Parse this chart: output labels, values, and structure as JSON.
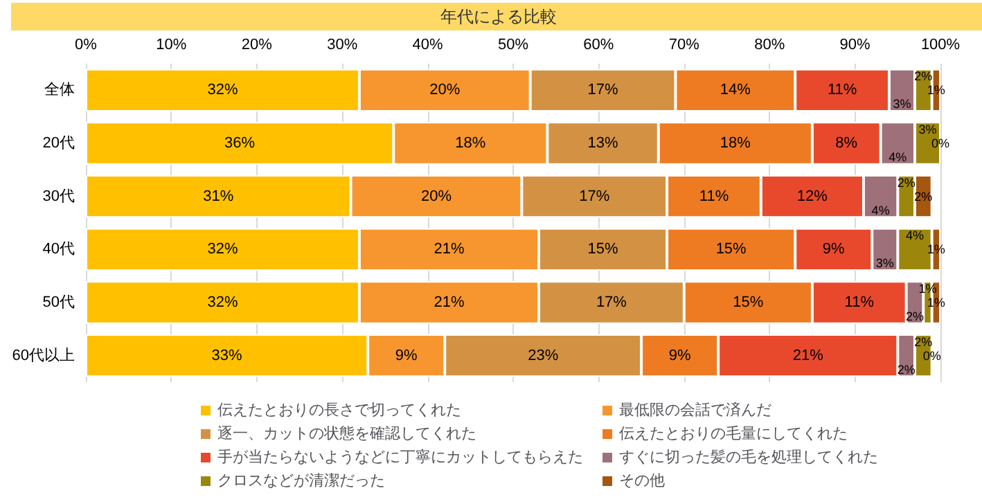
{
  "chart_data": {
    "type": "bar",
    "orientation": "horizontal",
    "stacked": true,
    "title": "年代による比較",
    "categories": [
      "全体",
      "20代",
      "30代",
      "40代",
      "50代",
      "60代以上"
    ],
    "series": [
      {
        "name": "伝えたとおりの長さで切ってくれた",
        "color": "#ffc000",
        "values": [
          32,
          36,
          31,
          32,
          32,
          33
        ],
        "value_labels": [
          "32%",
          "36%",
          "31%",
          "32%",
          "32%",
          "33%"
        ]
      },
      {
        "name": "最低限の会話で済んだ",
        "color": "#f7962e",
        "values": [
          20,
          18,
          20,
          21,
          21,
          9
        ],
        "value_labels": [
          "20%",
          "18%",
          "20%",
          "21%",
          "21%",
          "9%"
        ]
      },
      {
        "name": "逐一、カットの状態を確認してくれた",
        "color": "#d39243",
        "values": [
          17,
          13,
          17,
          15,
          17,
          23
        ],
        "value_labels": [
          "17%",
          "13%",
          "17%",
          "15%",
          "17%",
          "23%"
        ]
      },
      {
        "name": "伝えたとおりの毛量にしてくれた",
        "color": "#ee7b22",
        "values": [
          14,
          18,
          11,
          15,
          15,
          9
        ],
        "value_labels": [
          "14%",
          "18%",
          "11%",
          "15%",
          "15%",
          "9%"
        ]
      },
      {
        "name": "手が当たらないようなどに丁寧にカットしてもらえた",
        "color": "#e8492c",
        "values": [
          11,
          8,
          12,
          9,
          11,
          21
        ],
        "value_labels": [
          "11%",
          "8%",
          "12%",
          "9%",
          "11%",
          "21%"
        ]
      },
      {
        "name": "すぐに切った髪の毛を処理してくれた",
        "color": "#9e7079",
        "values": [
          3,
          4,
          4,
          3,
          2,
          2
        ],
        "value_labels": [
          "3%",
          "4%",
          "4%",
          "3%",
          "2%",
          "2%"
        ]
      },
      {
        "name": "クロスなどが清潔だった",
        "color": "#9c870c",
        "values": [
          2,
          3,
          2,
          4,
          1,
          2
        ],
        "value_labels": [
          "2%",
          "3%",
          "2%",
          "4%",
          "1%",
          "2%"
        ]
      },
      {
        "name": "その他",
        "color": "#a5560f",
        "values": [
          1,
          0,
          2,
          1,
          1,
          0
        ],
        "value_labels": [
          "1%",
          "0%",
          "2%",
          "1%",
          "1%",
          "0%"
        ]
      }
    ],
    "xlim": [
      0,
      100
    ],
    "xticks": [
      {
        "value": 0,
        "label": "0%"
      },
      {
        "value": 10,
        "label": "10%"
      },
      {
        "value": 20,
        "label": "20%"
      },
      {
        "value": 30,
        "label": "30%"
      },
      {
        "value": 40,
        "label": "40%"
      },
      {
        "value": 50,
        "label": "50%"
      },
      {
        "value": 60,
        "label": "60%"
      },
      {
        "value": 70,
        "label": "70%"
      },
      {
        "value": 80,
        "label": "80%"
      },
      {
        "value": 90,
        "label": "90%"
      },
      {
        "value": 100,
        "label": "100%"
      }
    ],
    "grid": "x",
    "legend": "bottom"
  }
}
